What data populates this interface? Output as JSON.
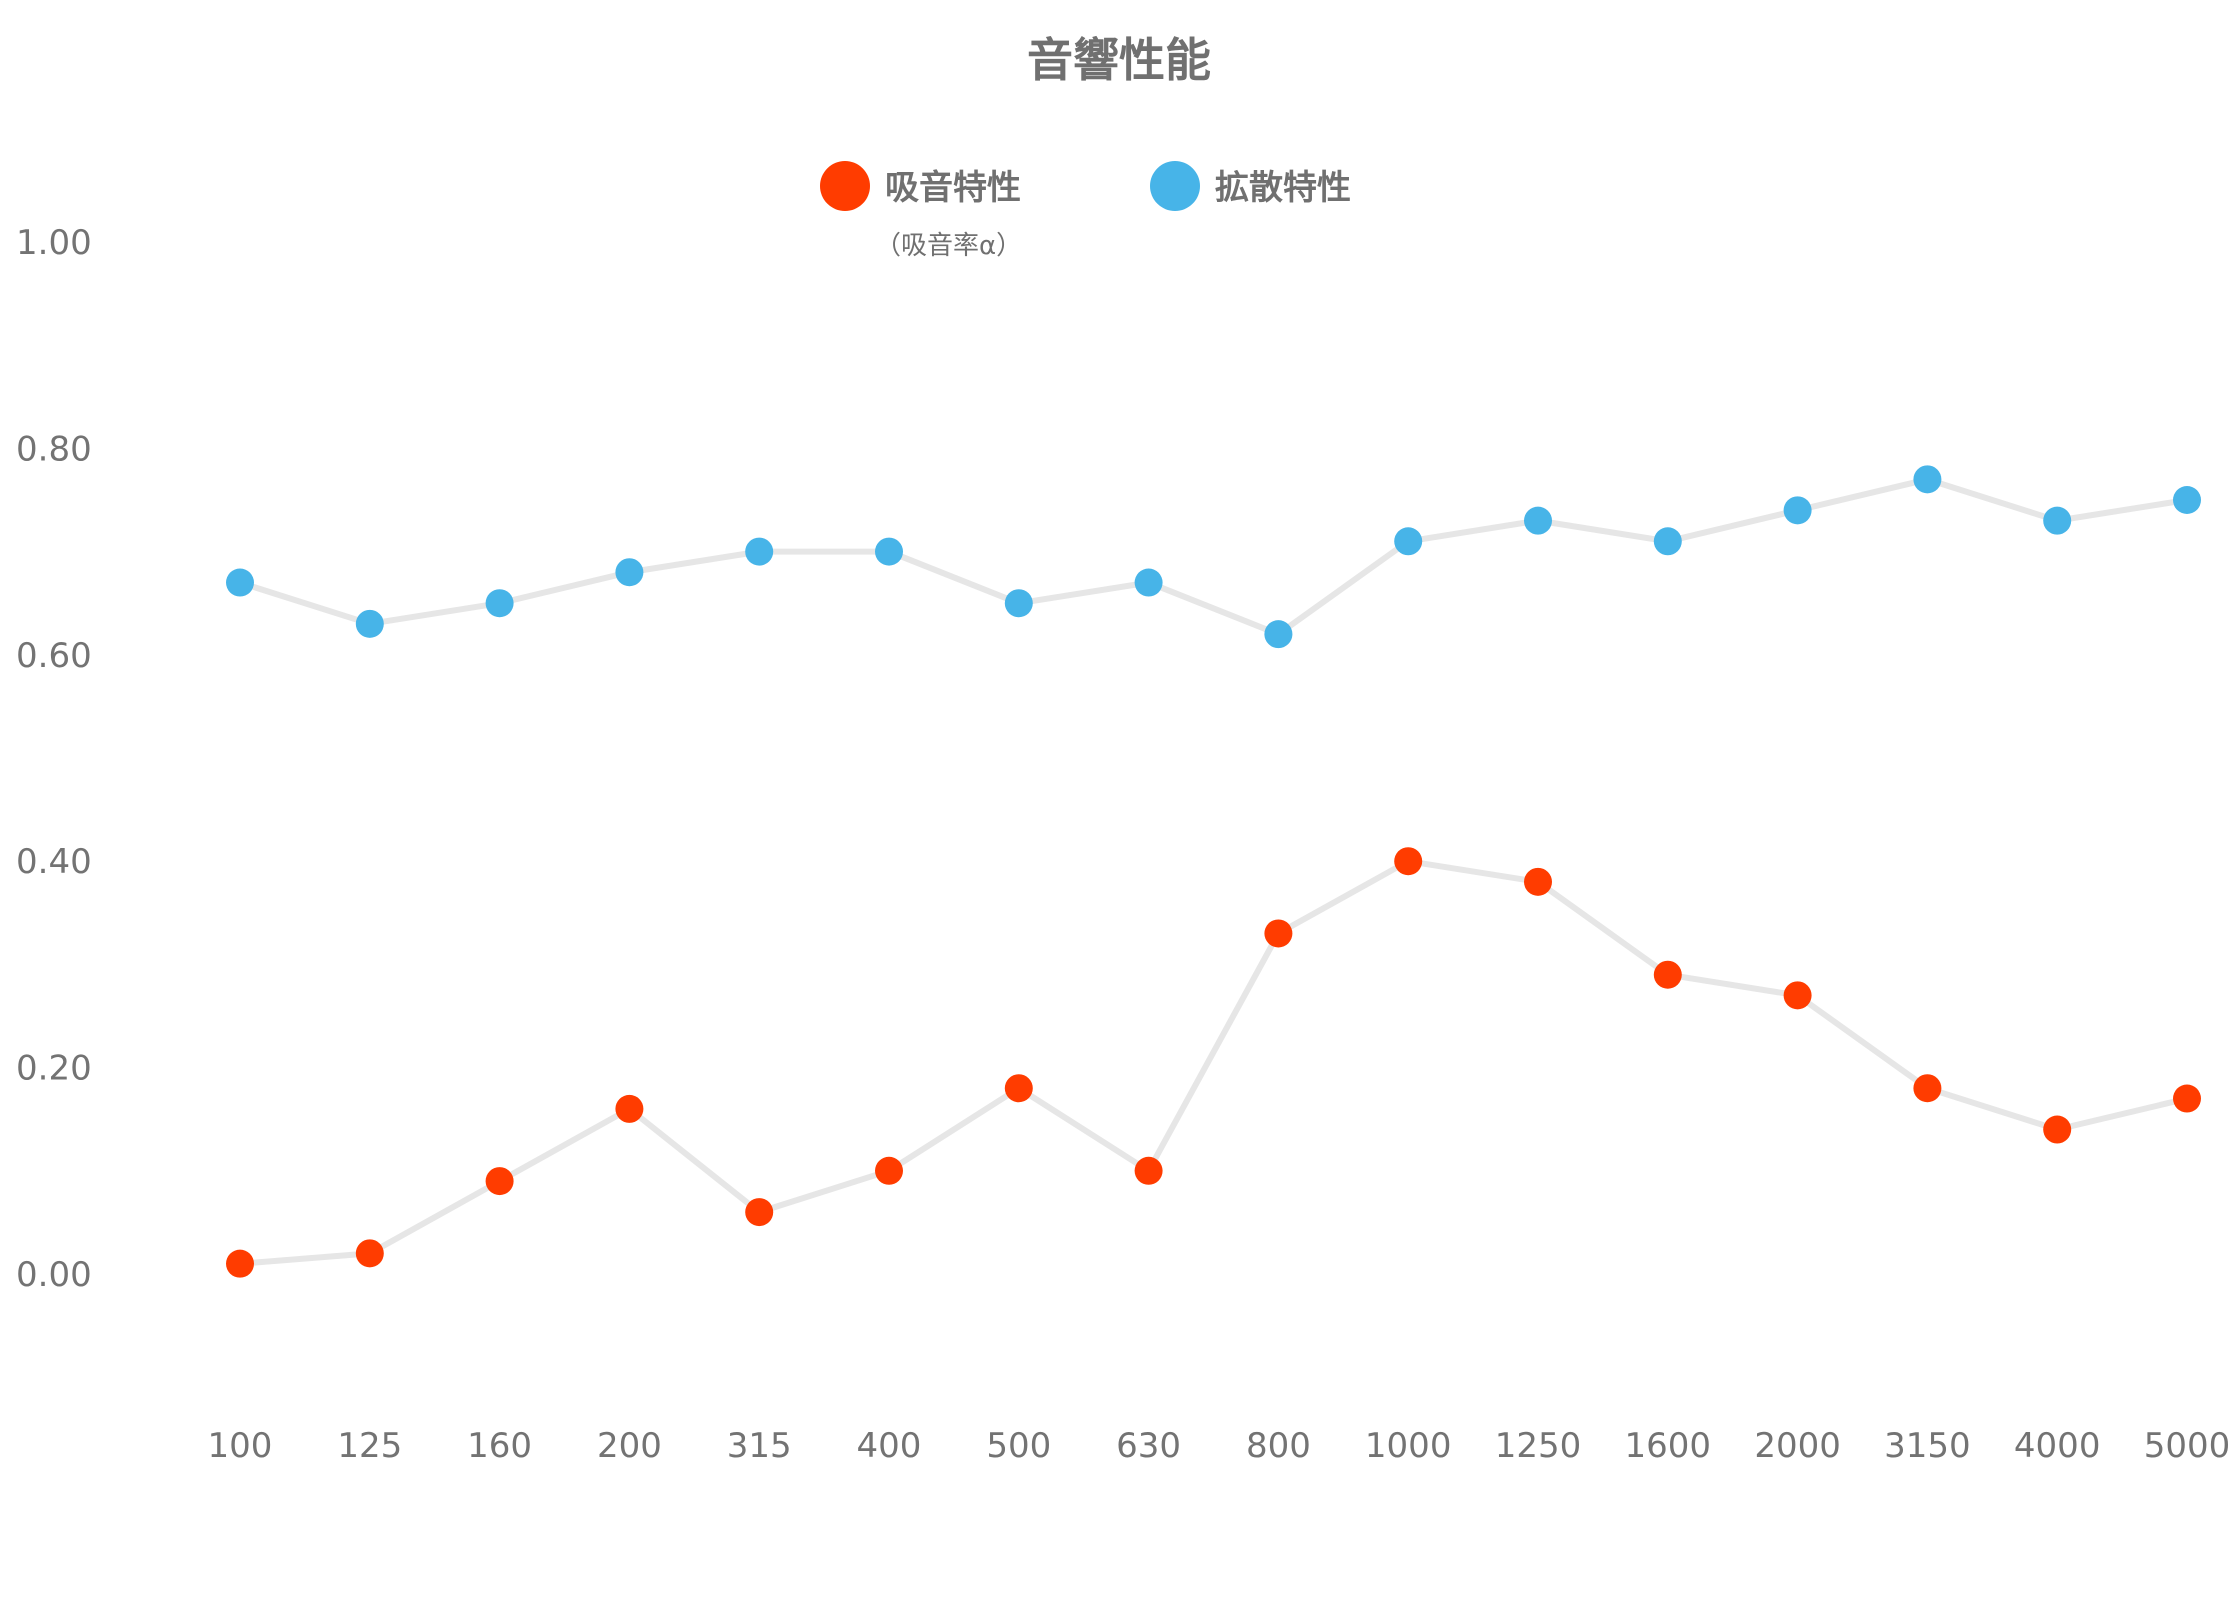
{
  "chart_data": {
    "type": "line",
    "title": "音響性能",
    "categories": [
      "100",
      "125",
      "160",
      "200",
      "315",
      "400",
      "500",
      "630",
      "800",
      "1000",
      "1250",
      "1600",
      "2000",
      "3150",
      "4000",
      "5000"
    ],
    "series": [
      {
        "name": "吸音特性",
        "subtitle": "（吸音率α）",
        "color": "#ff3c00",
        "values": [
          0.01,
          0.02,
          0.09,
          0.16,
          0.06,
          0.1,
          0.18,
          0.1,
          0.33,
          0.4,
          0.38,
          0.29,
          0.27,
          0.18,
          0.14,
          0.17
        ]
      },
      {
        "name": "拡散特性",
        "color": "#47b4e8",
        "values": [
          0.67,
          0.63,
          0.65,
          0.68,
          0.7,
          0.7,
          0.65,
          0.67,
          0.62,
          0.71,
          0.73,
          0.71,
          0.74,
          0.77,
          0.73,
          0.75
        ]
      }
    ],
    "yticks": [
      "1.00",
      "0.80",
      "0.60",
      "0.40",
      "0.20",
      "0.00"
    ],
    "ylim": [
      0.0,
      1.0
    ],
    "grid": false,
    "legend_position": "top-center",
    "line_color": "#e6e6e6"
  }
}
